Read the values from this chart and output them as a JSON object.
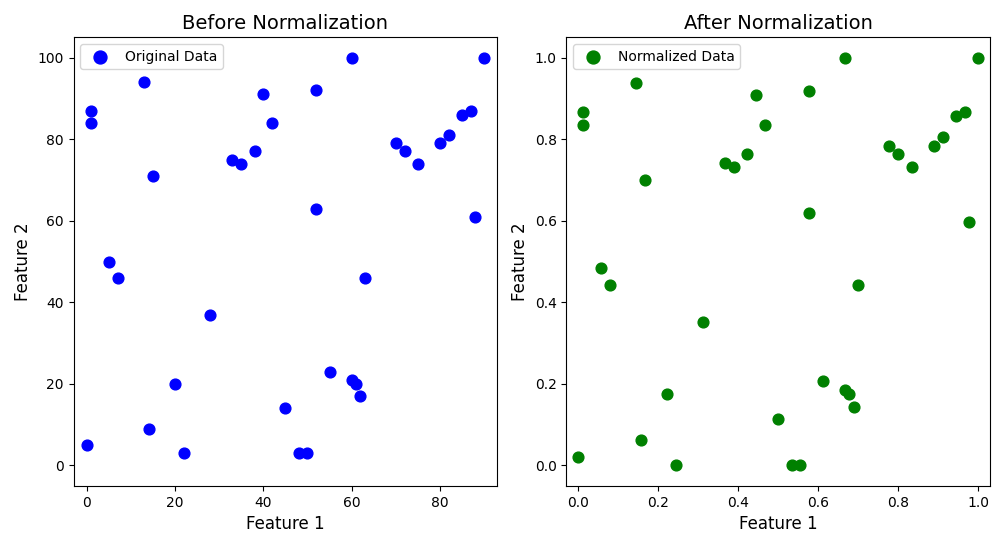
{
  "x": [
    0,
    1,
    1,
    5,
    7,
    13,
    14,
    15,
    20,
    22,
    28,
    33,
    35,
    38,
    40,
    42,
    45,
    48,
    50,
    52,
    52,
    55,
    60,
    60,
    61,
    62,
    63,
    70,
    72,
    75,
    80,
    82,
    85,
    87,
    88,
    90
  ],
  "y": [
    5,
    87,
    84,
    50,
    46,
    94,
    9,
    71,
    20,
    3,
    37,
    75,
    74,
    77,
    91,
    84,
    14,
    3,
    3,
    92,
    63,
    23,
    100,
    21,
    20,
    17,
    46,
    79,
    77,
    74,
    79,
    81,
    86,
    87,
    61,
    100
  ],
  "title_left": "Before Normalization",
  "title_right": "After Normalization",
  "xlabel": "Feature 1",
  "ylabel": "Feature 2",
  "legend_left": "Original Data",
  "legend_right": "Normalized Data",
  "color_left": "blue",
  "color_right": "green",
  "marker_size": 60
}
